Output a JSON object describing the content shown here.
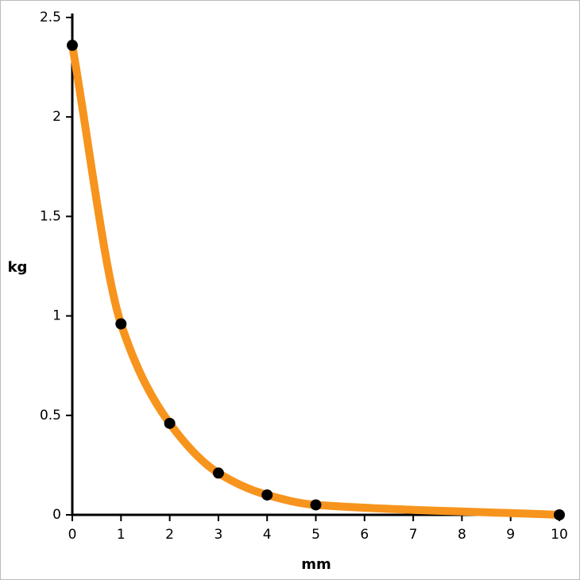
{
  "chart_data": {
    "type": "line",
    "x_label": "mm",
    "y_label": "kg",
    "x": [
      0,
      1,
      2,
      3,
      4,
      5,
      10
    ],
    "values": [
      2.36,
      0.96,
      0.46,
      0.21,
      0.1,
      0.05,
      0.0
    ],
    "color": "#f7941d",
    "marker_color": "#000000",
    "smooth": true,
    "xlim": [
      0,
      10
    ],
    "xticks": [
      0,
      1,
      2,
      3,
      4,
      5,
      6,
      7,
      8,
      9,
      10
    ],
    "ylim": [
      0,
      2.5
    ],
    "yticks": [
      0,
      0.5,
      1,
      1.5,
      2,
      2.5
    ]
  }
}
